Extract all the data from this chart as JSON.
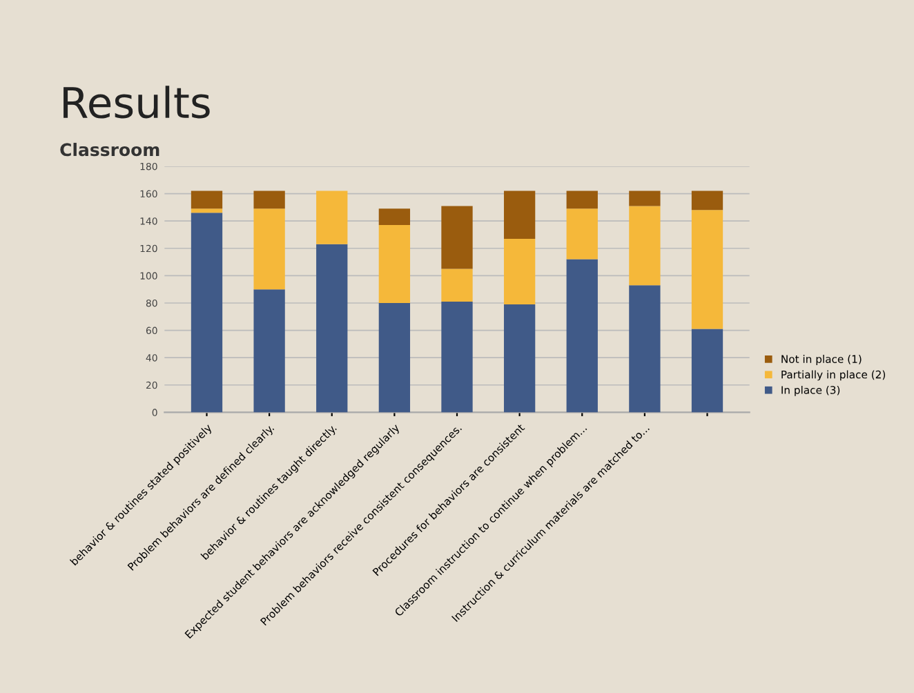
{
  "chart_data": {
    "type": "bar",
    "stacked": true,
    "title": "Results",
    "subtitle": "Classroom",
    "categories": [
      "behavior & routines stated positively",
      "Problem behaviors are defined clearly.",
      "behavior & routines taught directly.",
      "Expected student behaviors are acknowledged regularly",
      "Problem behaviors receive consistent consequences.",
      "Procedures for behaviors are consistent",
      "Classroom instruction to continue when problem...",
      "Instruction & curriculum materials are matched to...",
      null
    ],
    "series": [
      {
        "name": "In place (3)",
        "color": "#405a88",
        "values": [
          146,
          90,
          123,
          80,
          81,
          79,
          112,
          93,
          61
        ]
      },
      {
        "name": "Partially in place (2)",
        "color": "#f5b83a",
        "values": [
          3,
          59,
          39,
          57,
          24,
          48,
          37,
          58,
          87
        ]
      },
      {
        "name": "Not in place (1)",
        "color": "#9a5c0e",
        "values": [
          13,
          13,
          0,
          12,
          46,
          35,
          13,
          11,
          14
        ]
      }
    ],
    "ylim": [
      0,
      180
    ],
    "yticks": [
      0,
      20,
      40,
      60,
      80,
      100,
      120,
      140,
      160,
      180
    ],
    "grid": "y",
    "legend": "right"
  }
}
